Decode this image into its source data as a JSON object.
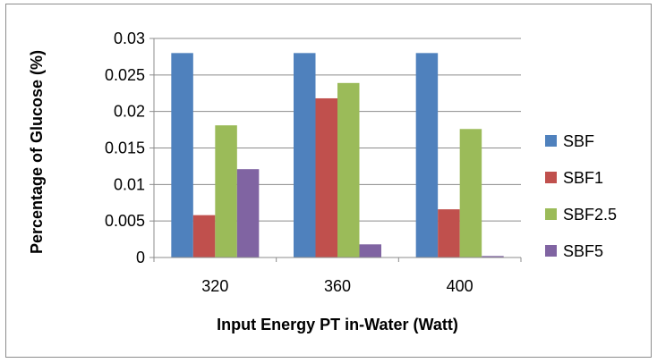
{
  "chart_data": {
    "type": "bar",
    "title": "",
    "xlabel": "Input Energy PT in-Water (Watt)",
    "ylabel": "Percentage of Glucose (%)",
    "categories": [
      "320",
      "360",
      "400"
    ],
    "ylim": [
      0,
      0.03
    ],
    "yticks": [
      "0",
      "0.005",
      "0.01",
      "0.015",
      "0.02",
      "0.025",
      "0.03"
    ],
    "ytick_values": [
      0,
      0.005,
      0.01,
      0.015,
      0.02,
      0.025,
      0.03
    ],
    "grid": true,
    "legend_position": "right",
    "series": [
      {
        "name": "SBF",
        "color": "#4F81BD",
        "values": [
          0.028,
          0.028,
          0.028
        ]
      },
      {
        "name": "SBF1",
        "color": "#C0504D",
        "values": [
          0.0058,
          0.0218,
          0.0066
        ]
      },
      {
        "name": "SBF2.5",
        "color": "#9BBB59",
        "values": [
          0.0181,
          0.0239,
          0.0176
        ]
      },
      {
        "name": "SBF5",
        "color": "#8064A2",
        "values": [
          0.0121,
          0.0018,
          0.0002
        ]
      }
    ]
  }
}
